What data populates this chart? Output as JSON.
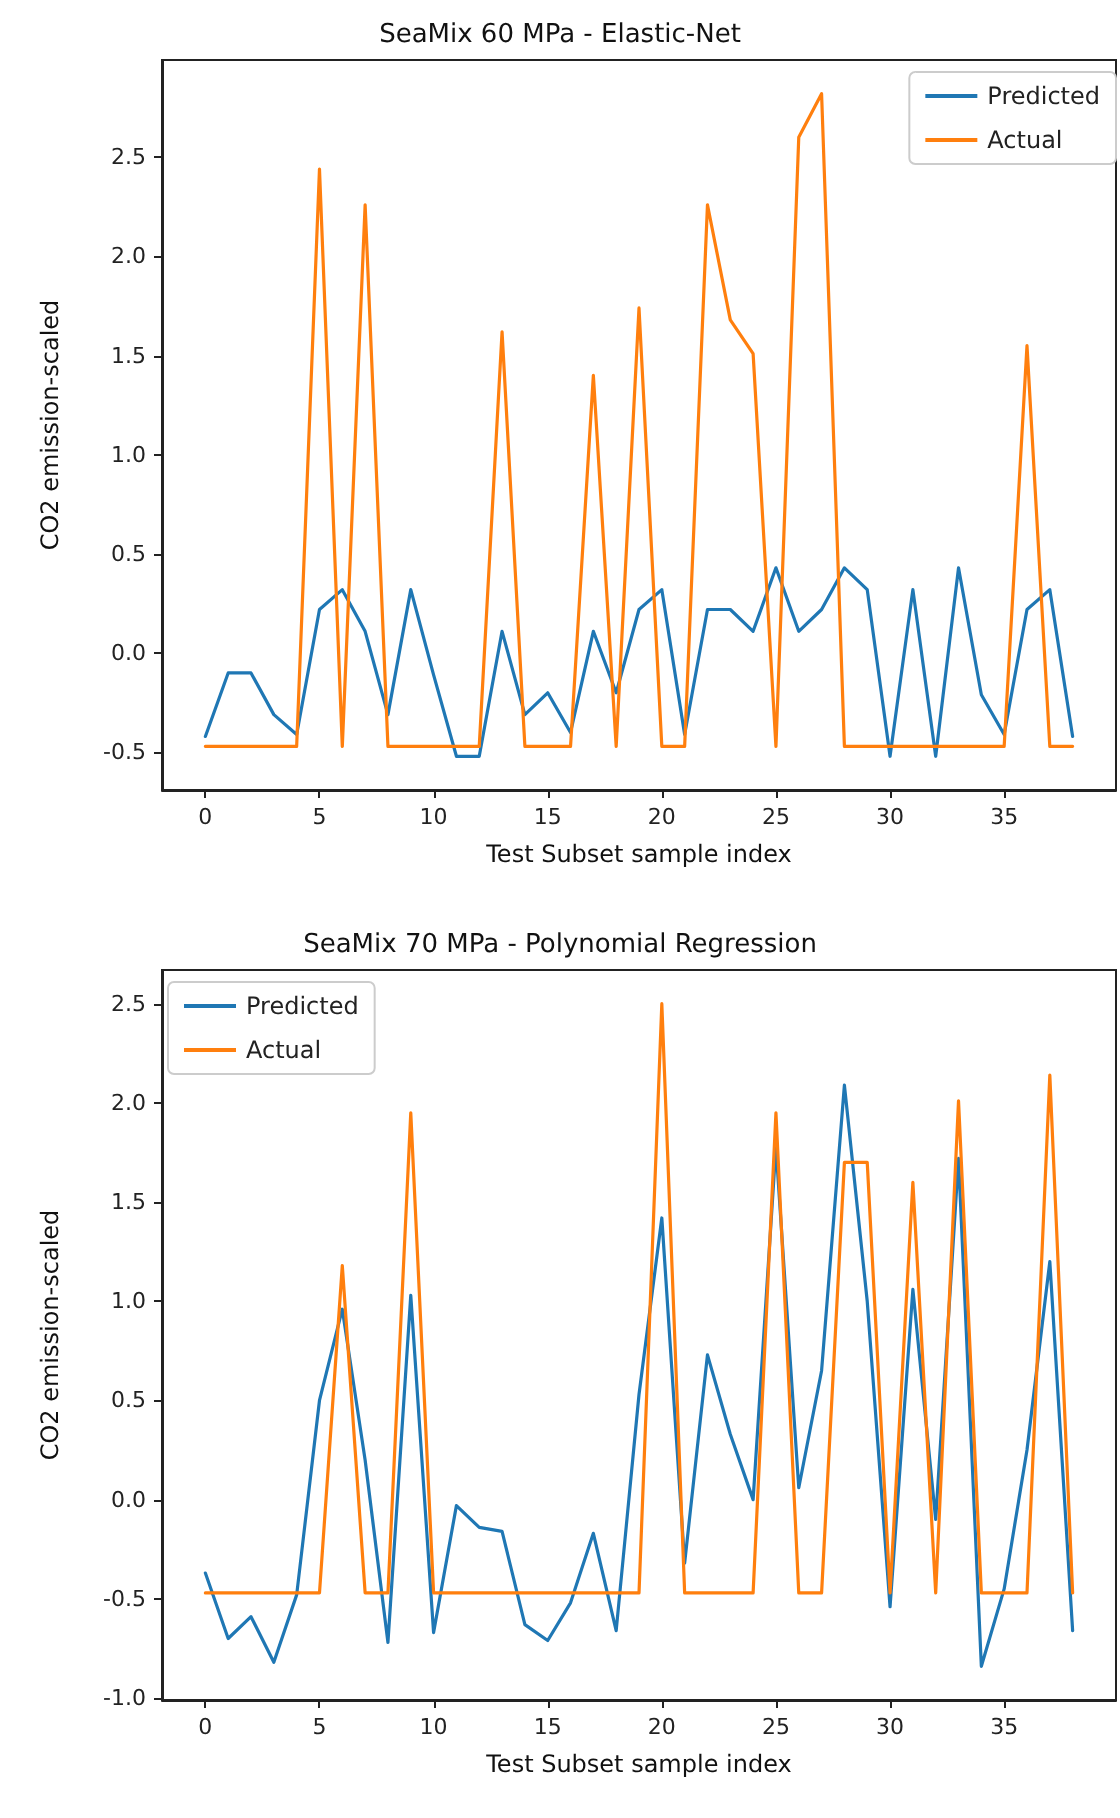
{
  "chart_data": [
    {
      "type": "line",
      "title": "SeaMix 60 MPa - Elastic-Net",
      "xlabel": "Test Subset sample index",
      "ylabel": "CO2 emission-scaled",
      "x": [
        0,
        1,
        2,
        3,
        4,
        5,
        6,
        7,
        8,
        9,
        10,
        11,
        12,
        13,
        14,
        15,
        16,
        17,
        18,
        19,
        20,
        21,
        22,
        23,
        24,
        25,
        26,
        27,
        28,
        29,
        30,
        31,
        32,
        33,
        34,
        35,
        36,
        37,
        38
      ],
      "series": [
        {
          "name": "Predicted",
          "color": "#1f77b4",
          "values": [
            -0.42,
            -0.1,
            -0.1,
            -0.31,
            -0.41,
            0.22,
            0.32,
            0.11,
            -0.31,
            0.32,
            -0.11,
            -0.52,
            -0.52,
            0.11,
            -0.31,
            -0.2,
            -0.4,
            0.11,
            -0.2,
            0.22,
            0.32,
            -0.41,
            0.22,
            0.22,
            0.11,
            0.43,
            0.11,
            0.22,
            0.43,
            0.32,
            -0.52,
            0.32,
            -0.52,
            0.43,
            -0.21,
            -0.41,
            0.22,
            0.32,
            -0.42
          ]
        },
        {
          "name": "Actual",
          "color": "#ff7f0e",
          "values": [
            -0.47,
            -0.47,
            -0.47,
            -0.47,
            -0.47,
            2.44,
            -0.47,
            2.26,
            -0.47,
            -0.47,
            -0.47,
            -0.47,
            -0.47,
            1.62,
            -0.47,
            -0.47,
            -0.47,
            1.4,
            -0.47,
            1.74,
            -0.47,
            -0.47,
            2.26,
            1.68,
            1.51,
            -0.47,
            2.6,
            2.82,
            -0.47,
            -0.47,
            -0.47,
            -0.47,
            -0.47,
            -0.47,
            -0.47,
            -0.47,
            1.55,
            -0.47,
            -0.47
          ]
        }
      ],
      "xlim": [
        -1.9,
        39.9
      ],
      "xticks": [
        0,
        5,
        10,
        15,
        20,
        25,
        30,
        35
      ],
      "ylim": [
        -0.69,
        2.99
      ],
      "yticks": [
        -0.5,
        {
          "value": 0,
          "label": "0.0"
        },
        0.5,
        {
          "value": 1,
          "label": "1.0"
        },
        1.5,
        {
          "value": 2,
          "label": "2.0"
        },
        2.5
      ],
      "grid": false,
      "legend": "top right"
    },
    {
      "type": "line",
      "title": "SeaMix 70 MPa - Polynomial Regression",
      "xlabel": "Test Subset sample index",
      "ylabel": "CO2 emission-scaled",
      "x": [
        0,
        1,
        2,
        3,
        4,
        5,
        6,
        7,
        8,
        9,
        10,
        11,
        12,
        13,
        14,
        15,
        16,
        17,
        18,
        19,
        20,
        21,
        22,
        23,
        24,
        25,
        26,
        27,
        28,
        29,
        30,
        31,
        32,
        33,
        34,
        35,
        36,
        37,
        38
      ],
      "series": [
        {
          "name": "Predicted",
          "color": "#1f77b4",
          "values": [
            -0.37,
            -0.7,
            -0.59,
            -0.82,
            -0.48,
            0.5,
            0.96,
            0.2,
            -0.72,
            1.03,
            -0.67,
            -0.03,
            -0.14,
            -0.16,
            -0.63,
            -0.71,
            -0.52,
            -0.17,
            -0.66,
            0.53,
            1.42,
            -0.32,
            0.73,
            0.33,
            0.0,
            1.78,
            0.06,
            0.65,
            2.09,
            1.0,
            -0.54,
            1.06,
            -0.1,
            1.72,
            -0.84,
            -0.45,
            0.25,
            1.2,
            -0.66
          ]
        },
        {
          "name": "Actual",
          "color": "#ff7f0e",
          "values": [
            -0.47,
            -0.47,
            -0.47,
            -0.47,
            -0.47,
            -0.47,
            1.18,
            -0.47,
            -0.47,
            1.95,
            -0.47,
            -0.47,
            -0.47,
            -0.47,
            -0.47,
            -0.47,
            -0.47,
            -0.47,
            -0.47,
            -0.47,
            2.5,
            -0.47,
            -0.47,
            -0.47,
            -0.47,
            1.95,
            -0.47,
            -0.47,
            1.7,
            1.7,
            -0.47,
            1.6,
            -0.47,
            2.01,
            -0.47,
            -0.47,
            -0.47,
            2.14,
            -0.47
          ]
        }
      ],
      "xlim": [
        -1.9,
        39.9
      ],
      "xticks": [
        0,
        5,
        10,
        15,
        20,
        25,
        30,
        35
      ],
      "ylim": [
        -1.01,
        2.67
      ],
      "yticks": [
        {
          "value": -1,
          "label": "-1.0"
        },
        -0.5,
        {
          "value": 0,
          "label": "0.0"
        },
        0.5,
        {
          "value": 1,
          "label": "1.0"
        },
        1.5,
        {
          "value": 2,
          "label": "2.0"
        },
        2.5
      ],
      "grid": false,
      "legend": "top left"
    }
  ]
}
